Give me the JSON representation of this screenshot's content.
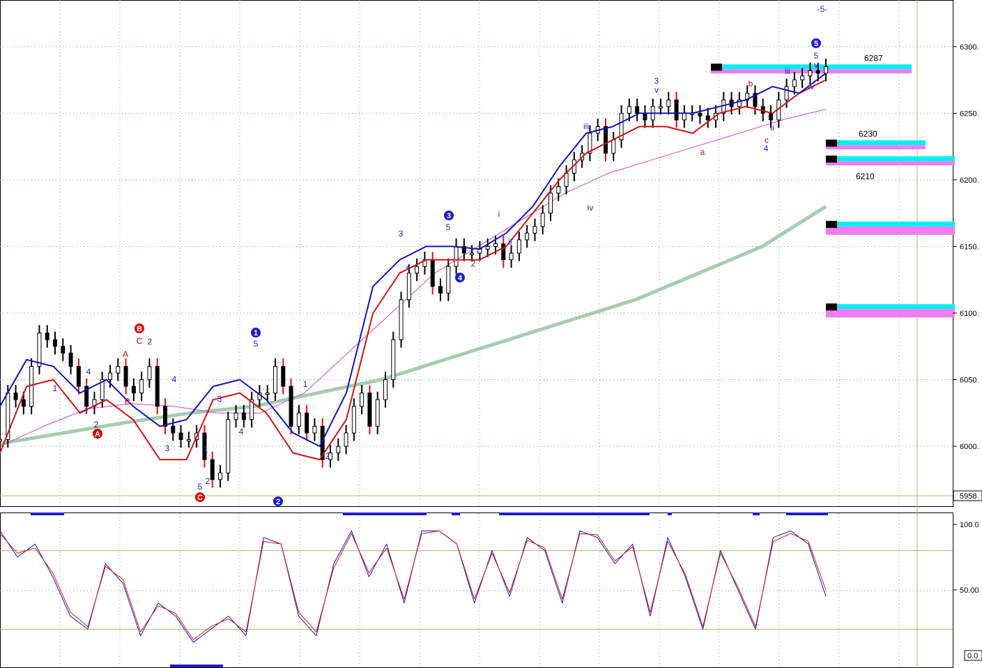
{
  "chart_data": {
    "type": "line",
    "title": "",
    "xlabel": "",
    "ylabel": "",
    "price_panel": {
      "ylim": [
        5955,
        6335
      ],
      "yticks": [
        6300,
        6250,
        6200,
        6150,
        6100,
        6050,
        6000
      ],
      "ytick_labels": [
        "6300.",
        "6250.",
        "6200.",
        "6150.",
        "6100.",
        "6050.",
        "6000."
      ],
      "last_value_label": "5958.",
      "series": [
        {
          "color": "#000000",
          "role": "price",
          "values": [
            6005,
            6040,
            6035,
            6030,
            6060,
            6085,
            6080,
            6075,
            6070,
            6060,
            6045,
            6030,
            6035,
            6050,
            6055,
            6060,
            6045,
            6040,
            6050,
            6060,
            6030,
            6015,
            6010,
            6005,
            6005,
            6010,
            5990,
            5975,
            5980,
            6020,
            6025,
            6020,
            6035,
            6040,
            6040,
            6060,
            6045,
            6015,
            6025,
            6010,
            6015,
            5990,
            5995,
            6000,
            6010,
            6030,
            6040,
            6015,
            6035,
            6050,
            6080,
            6110,
            6130,
            6135,
            6140,
            6120,
            6115,
            6135,
            6150,
            6145,
            6145,
            6148,
            6150,
            6152,
            6140,
            6145,
            6155,
            6160,
            6165,
            6175,
            6190,
            6195,
            6205,
            6215,
            6220,
            6235,
            6240,
            6220,
            6230,
            6250,
            6255,
            6250,
            6245,
            6255,
            6255,
            6260,
            6245,
            6250,
            6250,
            6248,
            6245,
            6250,
            6260,
            6255,
            6260,
            6265,
            6255,
            6250,
            6245,
            6260,
            6270,
            6275,
            6278,
            6282,
            6280,
            6285
          ]
        },
        {
          "color": "#1414b4",
          "role": "fast average",
          "values": [
            6030,
            6065,
            6060,
            6040,
            6050,
            6030,
            6015,
            6020,
            6045,
            6050,
            6035,
            6010,
            6000,
            6040,
            6120,
            6140,
            6150,
            6150,
            6148,
            6160,
            6180,
            6210,
            6235,
            6240,
            6250,
            6250,
            6250,
            6255,
            6260,
            6270,
            6265,
            6280
          ]
        },
        {
          "color": "#d21414",
          "role": "slow average",
          "values": [
            5995,
            6045,
            6050,
            6025,
            6035,
            6020,
            5990,
            5990,
            6035,
            6040,
            6025,
            5995,
            5990,
            6020,
            6100,
            6130,
            6140,
            6140,
            6140,
            6150,
            6175,
            6200,
            6220,
            6230,
            6240,
            6240,
            6235,
            6250,
            6255,
            6250,
            6265,
            6275
          ]
        },
        {
          "color": "#d24bc8",
          "role": "long average",
          "values": [
            6000,
            6015,
            6028,
            6032,
            6030,
            6025,
            6025,
            6040,
            6070,
            6100,
            6130,
            6150,
            6170,
            6190,
            6205,
            6215,
            6225,
            6235,
            6245,
            6253
          ]
        },
        {
          "color": "#a5cdaf",
          "role": "longest average",
          "values": [
            6002,
            6010,
            6018,
            6025,
            6030,
            6040,
            6050,
            6065,
            6080,
            6095,
            6110,
            6130,
            6150,
            6180
          ]
        }
      ],
      "wave_labels": [
        {
          "text": "1",
          "color": "#1e1ec8",
          "circled": false
        },
        {
          "text": "2",
          "color": "#1e1ec8",
          "circled": false
        },
        {
          "text": "3",
          "color": "#1e1ec8",
          "circled": false
        },
        {
          "text": "4",
          "color": "#1e1ec8",
          "circled": false
        },
        {
          "text": "5",
          "color": "#1e1ec8",
          "circled": false
        },
        {
          "text": "A",
          "color": "#dc0000",
          "circled": true
        },
        {
          "text": "B",
          "color": "#dc0000",
          "circled": false
        },
        {
          "text": "A",
          "color": "#dc0000",
          "circled": false
        },
        {
          "text": "B",
          "color": "#dc0000",
          "circled": true
        },
        {
          "text": "C",
          "color": "#dc0000",
          "circled": false
        },
        {
          "text": "2",
          "color": "#1e1ec8",
          "circled": false
        },
        {
          "text": "3",
          "color": "#1e1ec8",
          "circled": false
        },
        {
          "text": "4",
          "color": "#1e1ec8",
          "circled": false
        },
        {
          "text": "1",
          "color": "#1e1ec8",
          "circled": false
        },
        {
          "text": "2",
          "color": "#1e1ec8",
          "circled": false
        },
        {
          "text": "5",
          "color": "#1e1ec8",
          "circled": false
        },
        {
          "text": "C",
          "color": "#dc0000",
          "circled": true
        },
        {
          "text": "3",
          "color": "#1e1ec8",
          "circled": false
        },
        {
          "text": "4",
          "color": "#1e1ec8",
          "circled": false
        },
        {
          "text": "1",
          "color": "#1e1ec8",
          "circled": true
        },
        {
          "text": "5",
          "color": "#1e1ec8",
          "circled": false
        },
        {
          "text": "2",
          "color": "#1e1ec8",
          "circled": true
        },
        {
          "text": "1",
          "color": "#1e1ec8",
          "circled": false
        },
        {
          "text": "2",
          "color": "#1e1ec8",
          "circled": false
        },
        {
          "text": "3",
          "color": "#1e1ec8",
          "circled": false
        },
        {
          "text": "4",
          "color": "#1e1ec8",
          "circled": false
        },
        {
          "text": "3",
          "color": "#1e1ec8",
          "circled": true
        },
        {
          "text": "5",
          "color": "#1e1ec8",
          "circled": false
        },
        {
          "text": "4",
          "color": "#1e1ec8",
          "circled": true
        },
        {
          "text": "2",
          "color": "#1e1ec8",
          "circled": false
        },
        {
          "text": "i",
          "color": "#1e1ec8",
          "circled": false
        },
        {
          "text": "ii",
          "color": "#1e1ec8",
          "circled": false
        },
        {
          "text": "iii",
          "color": "#1e1ec8",
          "circled": false
        },
        {
          "text": "iv",
          "color": "#1e1ec8",
          "circled": false
        },
        {
          "text": "3",
          "color": "#1e1ec8",
          "circled": false
        },
        {
          "text": "v",
          "color": "#1e1ec8",
          "circled": false
        },
        {
          "text": "a",
          "color": "#dc0000",
          "circled": false
        },
        {
          "text": "b",
          "color": "#dc0000",
          "circled": false
        },
        {
          "text": "c",
          "color": "#dc0000",
          "circled": false
        },
        {
          "text": "4",
          "color": "#1e1ec8",
          "circled": false
        },
        {
          "text": "iii",
          "color": "#1e1ec8",
          "circled": false
        },
        {
          "text": "iv",
          "color": "#1e1ec8",
          "circled": false
        },
        {
          "text": "ii",
          "color": "#1e1ec8",
          "circled": false
        },
        {
          "text": "5",
          "color": "#1e1ec8",
          "circled": true
        },
        {
          "text": "5",
          "color": "#1e1ec8",
          "circled": false
        },
        {
          "text": "v",
          "color": "#1e1ec8",
          "circled": false
        },
        {
          "text": "-5-",
          "color": "#1e1ec8",
          "circled": false
        }
      ],
      "levels": [
        {
          "label": "6287",
          "value": 6283
        },
        {
          "label": "6230",
          "value": 6226
        },
        {
          "label": "6210",
          "value": 6214
        },
        {
          "label": "",
          "value": 6165
        },
        {
          "label": "",
          "value": 6103
        }
      ]
    },
    "oscillator_panel": {
      "ylim": [
        0,
        100
      ],
      "ytick_labels": [
        "100.0",
        "50.00",
        "0.0"
      ],
      "bands": [
        80,
        20
      ],
      "series": [
        {
          "color": "#1414c8",
          "values": [
            95,
            75,
            85,
            60,
            30,
            20,
            70,
            55,
            15,
            40,
            30,
            10,
            20,
            30,
            15,
            90,
            85,
            30,
            15,
            70,
            95,
            60,
            85,
            40,
            95,
            95,
            85,
            40,
            80,
            45,
            90,
            80,
            40,
            95,
            90,
            70,
            85,
            30,
            90,
            60,
            20,
            80,
            50,
            20,
            90,
            95,
            85,
            45
          ]
        },
        {
          "color": "#dc1414",
          "values": [
            93,
            78,
            82,
            63,
            33,
            22,
            68,
            58,
            18,
            38,
            32,
            12,
            22,
            28,
            18,
            87,
            85,
            33,
            18,
            67,
            93,
            63,
            82,
            43,
            93,
            95,
            85,
            43,
            78,
            48,
            88,
            82,
            43,
            93,
            92,
            72,
            83,
            33,
            87,
            62,
            22,
            78,
            52,
            22,
            87,
            93,
            87,
            50
          ]
        }
      ]
    }
  }
}
